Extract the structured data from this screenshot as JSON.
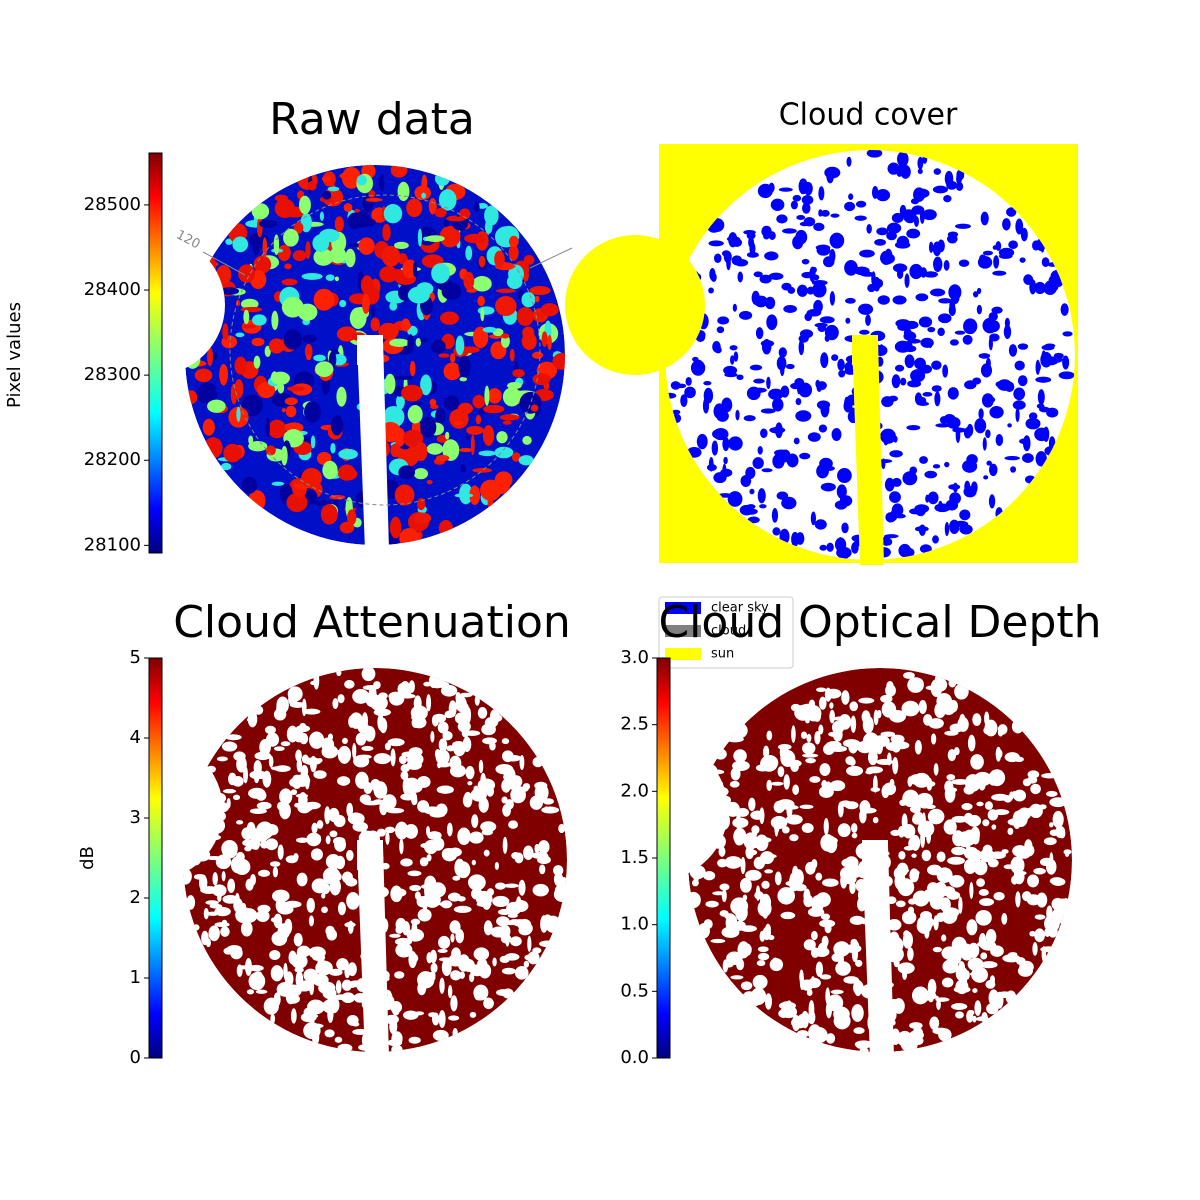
{
  "chart_data": [
    {
      "type": "image",
      "title": "Raw data",
      "colormap": "jet",
      "colorbar_label": "Pixel values",
      "ylim": [
        28091,
        28561
      ],
      "yticks": [
        28100,
        28200,
        28300,
        28400,
        28500
      ],
      "annotations": [
        "120"
      ]
    },
    {
      "type": "classification",
      "title": "Cloud cover",
      "legend": [
        {
          "name": "clear sky",
          "color": "#0000ff"
        },
        {
          "name": "cloud",
          "color": "#808080"
        },
        {
          "name": "sun",
          "color": "#ffff00"
        }
      ]
    },
    {
      "type": "image",
      "title": "Cloud Attenuation",
      "colormap": "jet",
      "colorbar_label": "dB",
      "ylim": [
        0,
        5
      ],
      "yticks": [
        0,
        1,
        2,
        3,
        4,
        5
      ]
    },
    {
      "type": "image",
      "title": "Cloud Optical Depth",
      "colormap": "jet",
      "ylim": [
        0,
        3
      ],
      "yticks": [
        {
          "value": 0,
          "label": "0.0"
        },
        0.5,
        {
          "value": 1,
          "label": "1.0"
        },
        1.5,
        {
          "value": 2,
          "label": "2.0"
        },
        2.5,
        {
          "value": 3,
          "label": "3.0"
        }
      ]
    }
  ]
}
